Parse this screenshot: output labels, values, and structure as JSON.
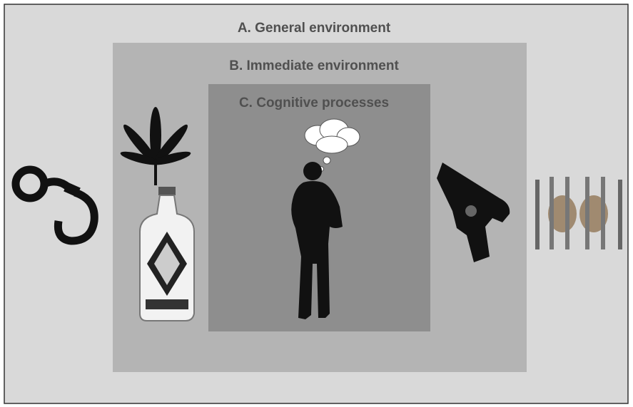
{
  "boxes": [
    {
      "label": "A. General environment"
    },
    {
      "label": "B. Immediate environment"
    },
    {
      "label": "C. Cognitive processes"
    }
  ]
}
